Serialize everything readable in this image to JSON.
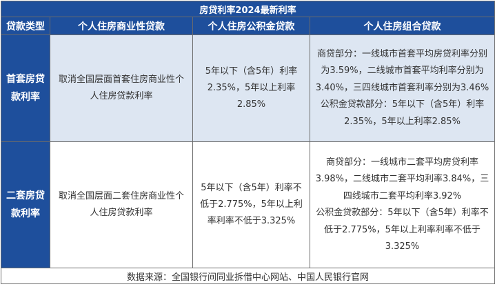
{
  "title": "房贷利率2024最新利率",
  "headers": {
    "type": "贷款类型",
    "commercial": "个人住房商业性贷款",
    "provident": "个人住房公积金贷款",
    "combo": "个人住房组合贷款"
  },
  "rows": [
    {
      "label": "首套房贷款利率",
      "commercial": "取消全国层面首套住房商业性个人住房贷款利率",
      "provident": "5年以下（含5年）利率2.35%，5年以上利率2.85%",
      "combo_commercial": "商贷部分：一线城市首套平均房贷利率分别为3.59%，二线城市首套平均利率分别为3.40%，三四线城市首套利率分别为3.46%",
      "combo_provident": "公积金贷款部分：5年以下（含5年）利率2.35%，5年以上利率2.85%"
    },
    {
      "label": "二套房贷款利率",
      "commercial": "取消全国层面二套住房商业性个人住房贷款利率",
      "provident": "5年以下（含5年）利率不低于2.775%，5年以上利率利率不低于3.325%",
      "combo_commercial": "商贷部分：一线城市二套平均房贷利率3.98%，二线城市二套平均利率3.84%，三四线城市二套平均利率3.92%",
      "combo_provident": "公积金贷款部分：5年以下（含5年）利率不低于2.775%，5年以上利率利率不低于3.325%"
    }
  ],
  "source": "数据来源：全国银行间同业拆借中心网站、中国人民银行官网"
}
